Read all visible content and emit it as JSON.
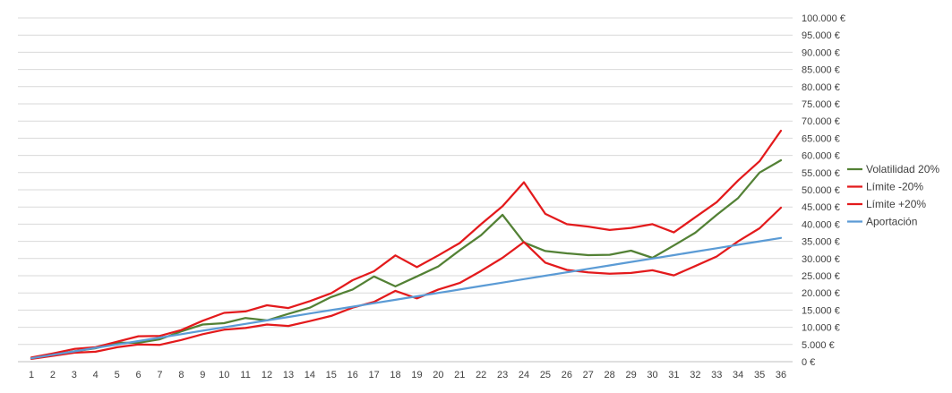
{
  "chart_data": {
    "type": "line",
    "title": "",
    "xlabel": "",
    "ylabel": "",
    "categories": [
      "1",
      "2",
      "3",
      "4",
      "5",
      "6",
      "7",
      "8",
      "9",
      "10",
      "11",
      "12",
      "13",
      "14",
      "15",
      "16",
      "17",
      "18",
      "19",
      "20",
      "21",
      "22",
      "23",
      "24",
      "25",
      "26",
      "27",
      "28",
      "29",
      "30",
      "31",
      "32",
      "33",
      "34",
      "35",
      "36"
    ],
    "y_ticks": [
      0,
      5000,
      10000,
      15000,
      20000,
      25000,
      30000,
      35000,
      40000,
      45000,
      50000,
      55000,
      60000,
      65000,
      70000,
      75000,
      80000,
      85000,
      90000,
      95000,
      100000
    ],
    "y_tick_labels": [
      "0 €",
      "5.000 €",
      "10.000 €",
      "15.000 €",
      "20.000 €",
      "25.000 €",
      "30.000 €",
      "35.000 €",
      "40.000 €",
      "45.000 €",
      "50.000 €",
      "55.000 €",
      "60.000 €",
      "65.000 €",
      "70.000 €",
      "75.000 €",
      "80.000 €",
      "85.000 €",
      "90.000 €",
      "95.000 €",
      "100.000 €"
    ],
    "ylim": [
      0,
      100000
    ],
    "y_axis_position": "right",
    "grid": true,
    "legend_position": "right",
    "series": [
      {
        "name": "Volatilidad 20%",
        "color": "#538135",
        "values": [
          1000,
          2000,
          3000,
          3900,
          5500,
          5500,
          6500,
          8800,
          10800,
          11200,
          12700,
          12000,
          13900,
          15700,
          18800,
          21000,
          24800,
          21900,
          24800,
          27700,
          32400,
          36800,
          42700,
          34700,
          32200,
          31500,
          31000,
          31100,
          32300,
          30200,
          33800,
          37500,
          42700,
          47600,
          55000,
          58600
        ]
      },
      {
        "name": "Límite -20%",
        "color": "#e31a1c",
        "values": [
          1200,
          2400,
          3700,
          4200,
          5800,
          7400,
          7500,
          9200,
          11900,
          14200,
          14600,
          16400,
          15600,
          17600,
          19900,
          23700,
          26300,
          30900,
          27500,
          30900,
          34500,
          40000,
          45200,
          52200,
          43000,
          40000,
          39300,
          38300,
          38900,
          40000,
          37600,
          42000,
          46400,
          52700,
          58300,
          67200
        ]
      },
      {
        "name": "Límite +20%",
        "color": "#e31a1c",
        "values": [
          800,
          1700,
          2600,
          2900,
          4200,
          5000,
          4900,
          6300,
          8000,
          9300,
          9800,
          10800,
          10400,
          11800,
          13300,
          15700,
          17400,
          20600,
          18400,
          21000,
          22900,
          26400,
          30200,
          34800,
          28800,
          26700,
          26000,
          25600,
          25800,
          26600,
          25100,
          27800,
          30600,
          35000,
          38800,
          44800
        ]
      },
      {
        "name": "Aportación",
        "color": "#5b9bd5",
        "values": [
          1000,
          2000,
          3000,
          4000,
          5000,
          6000,
          7000,
          8000,
          9000,
          10000,
          11000,
          12000,
          13000,
          14000,
          15000,
          16000,
          17000,
          18000,
          19000,
          20000,
          21000,
          22000,
          23000,
          24000,
          25000,
          26000,
          27000,
          28000,
          29000,
          30000,
          31000,
          32000,
          33000,
          34000,
          35000,
          36000
        ]
      }
    ]
  }
}
